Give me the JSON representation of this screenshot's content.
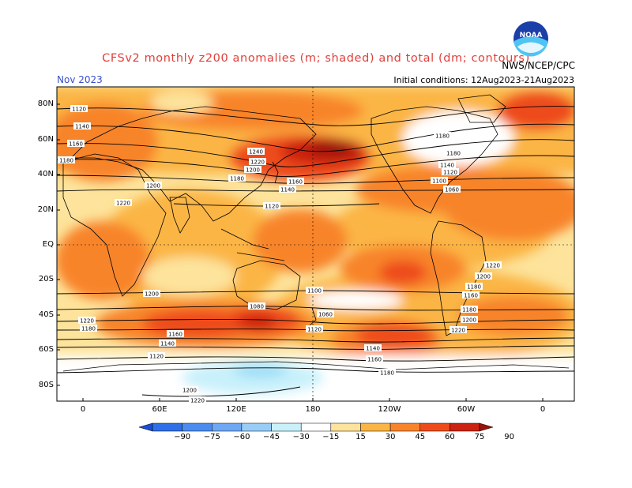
{
  "header": {
    "title": "CFSv2 monthly z200 anomalies (m; shaded) and total (dm; contours)",
    "month": "Nov 2023",
    "initial_conditions": "Initial conditions: 12Aug2023-21Aug2023",
    "credit": "NWS/NCEP/CPC",
    "logo_text": "NOAA"
  },
  "map": {
    "lat_labels": [
      "80N",
      "60N",
      "40N",
      "20N",
      "EQ",
      "20S",
      "40S",
      "60S",
      "80S"
    ],
    "lon_labels": [
      "0",
      "60E",
      "120E",
      "180",
      "120W",
      "60W",
      "0"
    ],
    "contour_labels": [
      "1120",
      "1140",
      "1160",
      "1180",
      "1200",
      "1220",
      "1240",
      "1220",
      "1200",
      "1180",
      "1160",
      "1140",
      "1120",
      "1100",
      "1080",
      "1060",
      "1120",
      "1140",
      "1160",
      "1180",
      "1200",
      "1220",
      "1180",
      "1180",
      "1140",
      "1120",
      "1100",
      "1060",
      "1200",
      "1220",
      "1180",
      "1160",
      "1140",
      "1120",
      "1160",
      "1180",
      "1200",
      "1220",
      "1180",
      "1200",
      "1220"
    ],
    "colors": {
      "ocean_bg": "#ffffff",
      "anom_15": "#fde39b",
      "anom_30": "#fbb544",
      "anom_45": "#f8842a",
      "anom_60": "#ee4b1b",
      "anom_75": "#cc2211",
      "anom_90": "#99130c",
      "anom_neg15": "#c9f1fb",
      "anom_neg30": "#98dcf7"
    }
  },
  "colorbar": {
    "labels": [
      "−90",
      "−75",
      "−60",
      "−45",
      "−30",
      "−15",
      "15",
      "30",
      "45",
      "60",
      "75",
      "90"
    ],
    "colors": [
      "#1a4fd6",
      "#2f6fe8",
      "#4b8cf0",
      "#6ea8f5",
      "#98cdf7",
      "#c9f1fb",
      "#ffffff",
      "#fde39b",
      "#fbb544",
      "#f8842a",
      "#ee4b1b",
      "#cc2211",
      "#99130c"
    ]
  }
}
